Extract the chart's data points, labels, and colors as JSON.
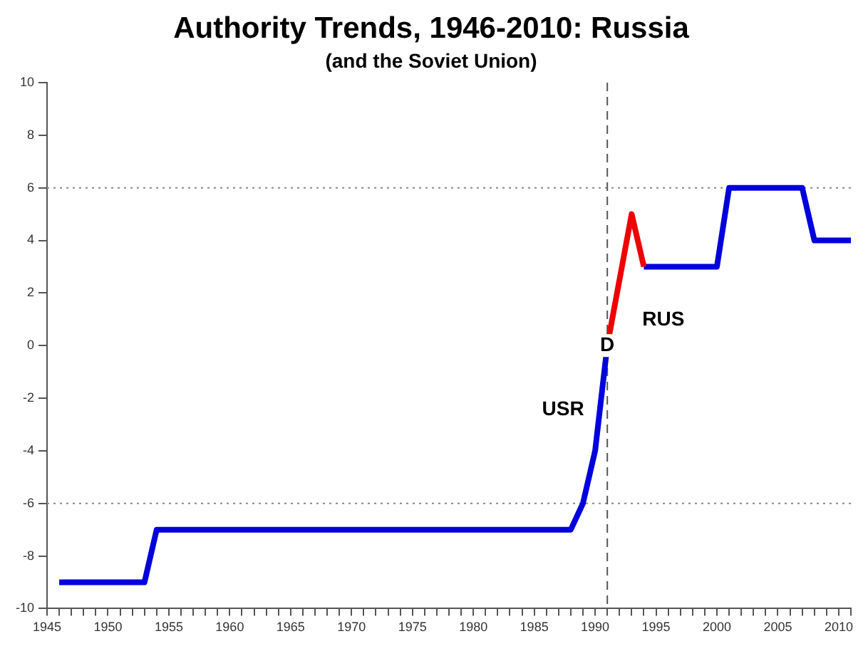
{
  "chart_data": {
    "type": "line",
    "title": "Authority Trends, 1946-2010: Russia",
    "subtitle": "(and the Soviet Union)",
    "series": [
      {
        "name": "USR",
        "color": "#0000dd",
        "x": [
          1946,
          1953,
          1954,
          1988,
          1989,
          1990,
          1991
        ],
        "values": [
          -9,
          -9,
          -7,
          -7,
          -6,
          -4,
          0
        ]
      },
      {
        "name": "RUS",
        "color": "#ee0000",
        "x": [
          1991,
          1993,
          1994
        ],
        "values": [
          0,
          5,
          3
        ]
      },
      {
        "color": "#0000dd",
        "x": [
          1994,
          2000,
          2001,
          2007,
          2008,
          2011
        ],
        "values": [
          3,
          3,
          6,
          6,
          4,
          4
        ]
      }
    ],
    "xlim": [
      1945,
      2011
    ],
    "xticks": [
      1945,
      {
        "value": 1946,
        "label": null
      },
      {
        "value": 1947,
        "label": null
      },
      {
        "value": 1948,
        "label": null
      },
      {
        "value": 1949,
        "label": null
      },
      1950,
      {
        "value": 1951,
        "label": null
      },
      {
        "value": 1952,
        "label": null
      },
      {
        "value": 1953,
        "label": null
      },
      {
        "value": 1954,
        "label": null
      },
      1955,
      {
        "value": 1956,
        "label": null
      },
      {
        "value": 1957,
        "label": null
      },
      {
        "value": 1958,
        "label": null
      },
      {
        "value": 1959,
        "label": null
      },
      1960,
      {
        "value": 1961,
        "label": null
      },
      {
        "value": 1962,
        "label": null
      },
      {
        "value": 1963,
        "label": null
      },
      {
        "value": 1964,
        "label": null
      },
      1965,
      {
        "value": 1966,
        "label": null
      },
      {
        "value": 1967,
        "label": null
      },
      {
        "value": 1968,
        "label": null
      },
      {
        "value": 1969,
        "label": null
      },
      1970,
      {
        "value": 1971,
        "label": null
      },
      {
        "value": 1972,
        "label": null
      },
      {
        "value": 1973,
        "label": null
      },
      {
        "value": 1974,
        "label": null
      },
      1975,
      {
        "value": 1976,
        "label": null
      },
      {
        "value": 1977,
        "label": null
      },
      {
        "value": 1978,
        "label": null
      },
      {
        "value": 1979,
        "label": null
      },
      1980,
      {
        "value": 1981,
        "label": null
      },
      {
        "value": 1982,
        "label": null
      },
      {
        "value": 1983,
        "label": null
      },
      {
        "value": 1984,
        "label": null
      },
      1985,
      {
        "value": 1986,
        "label": null
      },
      {
        "value": 1987,
        "label": null
      },
      {
        "value": 1988,
        "label": null
      },
      {
        "value": 1989,
        "label": null
      },
      1990,
      {
        "value": 1991,
        "label": null
      },
      {
        "value": 1992,
        "label": null
      },
      {
        "value": 1993,
        "label": null
      },
      {
        "value": 1994,
        "label": null
      },
      1995,
      {
        "value": 1996,
        "label": null
      },
      {
        "value": 1997,
        "label": null
      },
      {
        "value": 1998,
        "label": null
      },
      {
        "value": 1999,
        "label": null
      },
      2000,
      {
        "value": 2001,
        "label": null
      },
      {
        "value": 2002,
        "label": null
      },
      {
        "value": 2003,
        "label": null
      },
      {
        "value": 2004,
        "label": null
      },
      2005,
      {
        "value": 2006,
        "label": null
      },
      {
        "value": 2007,
        "label": null
      },
      {
        "value": 2008,
        "label": null
      },
      {
        "value": 2009,
        "label": null
      },
      2010,
      {
        "value": 2011,
        "label": null
      }
    ],
    "ylim": [
      -10,
      10
    ],
    "yticks": [
      -10,
      -8,
      -6,
      -4,
      -2,
      0,
      2,
      4,
      6,
      8,
      10
    ],
    "grid": false,
    "legend": false,
    "marker": "none",
    "line_style": "solid",
    "ref_lines": [
      {
        "axis": "y",
        "value": 6,
        "color": "#888888",
        "line_style": "dotted"
      },
      {
        "axis": "y",
        "value": -6,
        "color": "#888888",
        "line_style": "dotted"
      },
      {
        "axis": "x",
        "value": 1991,
        "color": "#555555",
        "line_style": "dashed"
      }
    ],
    "annotations": [
      {
        "text": "D",
        "x": 1991,
        "y": 0
      }
    ]
  }
}
